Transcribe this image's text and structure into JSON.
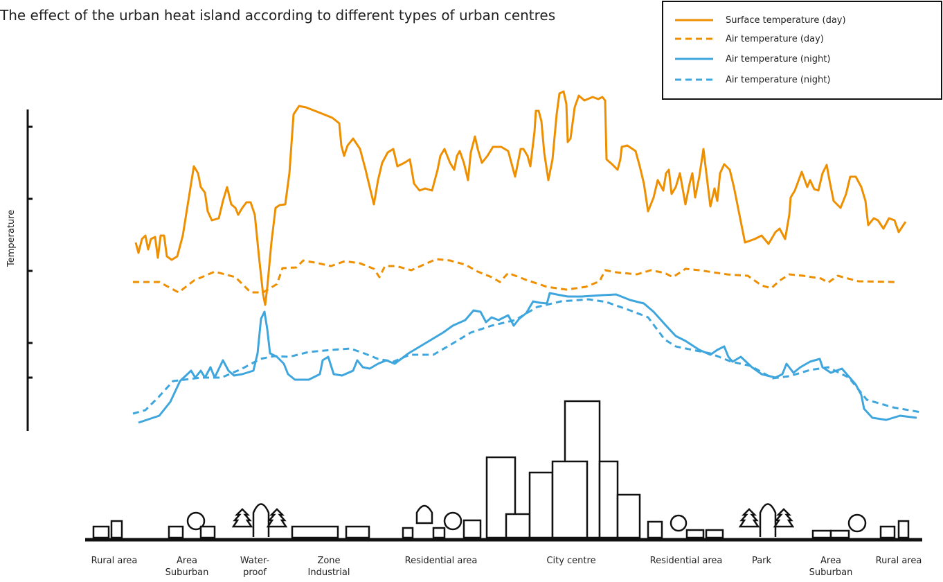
{
  "header": {
    "title": "The effect of the urban heat island according to different types of urban centres"
  },
  "legend": {
    "entries": [
      "Surface temperature (day)",
      "Air temperature (day)",
      "Air temperature (night)",
      "Air temperature (night)"
    ]
  },
  "axis": {
    "y_label": "Temperature"
  },
  "zones": [
    [
      "Rural area"
    ],
    [
      "Area",
      "Suburban"
    ],
    [
      "Water-",
      "proof"
    ],
    [
      "Zone",
      "Industrial"
    ],
    [
      "Residential area"
    ],
    [
      "City centre"
    ],
    [
      "Residential area"
    ],
    [
      "Park"
    ],
    [
      "Area",
      "Suburban"
    ],
    [
      "Rural area"
    ]
  ]
}
